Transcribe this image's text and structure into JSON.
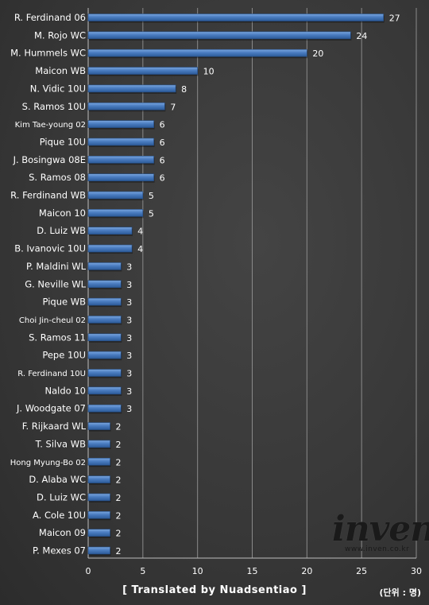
{
  "chart_data": {
    "type": "bar",
    "orientation": "horizontal",
    "categories": [
      "R. Ferdinand 06",
      "M. Rojo WC",
      "M. Hummels WC",
      "Maicon WB",
      "N. Vidic 10U",
      "S. Ramos 10U",
      "Kim Tae-young 02",
      "Pique 10U",
      "J. Bosingwa 08E",
      "S. Ramos 08",
      "R. Ferdinand WB",
      "Maicon 10",
      "D. Luiz WB",
      "B. Ivanovic 10U",
      "P. Maldini WL",
      "G. Neville WL",
      "Pique WB",
      "Choi Jin-cheul 02",
      "S. Ramos 11",
      "Pepe 10U",
      "R. Ferdinand 10U",
      "Naldo 10",
      "J. Woodgate 07",
      "F. Rijkaard WL",
      "T. Silva WB",
      "Hong Myung-Bo 02",
      "D. Alaba WC",
      "D. Luiz WC",
      "A. Cole 10U",
      "Maicon 09",
      "P. Mexes 07"
    ],
    "values": [
      27,
      24,
      20,
      10,
      8,
      7,
      6,
      6,
      6,
      6,
      5,
      5,
      4,
      4,
      3,
      3,
      3,
      3,
      3,
      3,
      3,
      3,
      3,
      2,
      2,
      2,
      2,
      2,
      2,
      2,
      2
    ],
    "xlim": [
      0,
      30
    ],
    "xticks": [
      "0",
      "5",
      "10",
      "15",
      "20",
      "25",
      "30"
    ],
    "grid": true,
    "bar_color": "#4a7cc0"
  },
  "footer": {
    "credit": "[ Translated by Nuadsentiao ]",
    "unit": "(단위 : 명)"
  },
  "watermark": {
    "word": "inven",
    "url": "www.inven.co.kr"
  }
}
